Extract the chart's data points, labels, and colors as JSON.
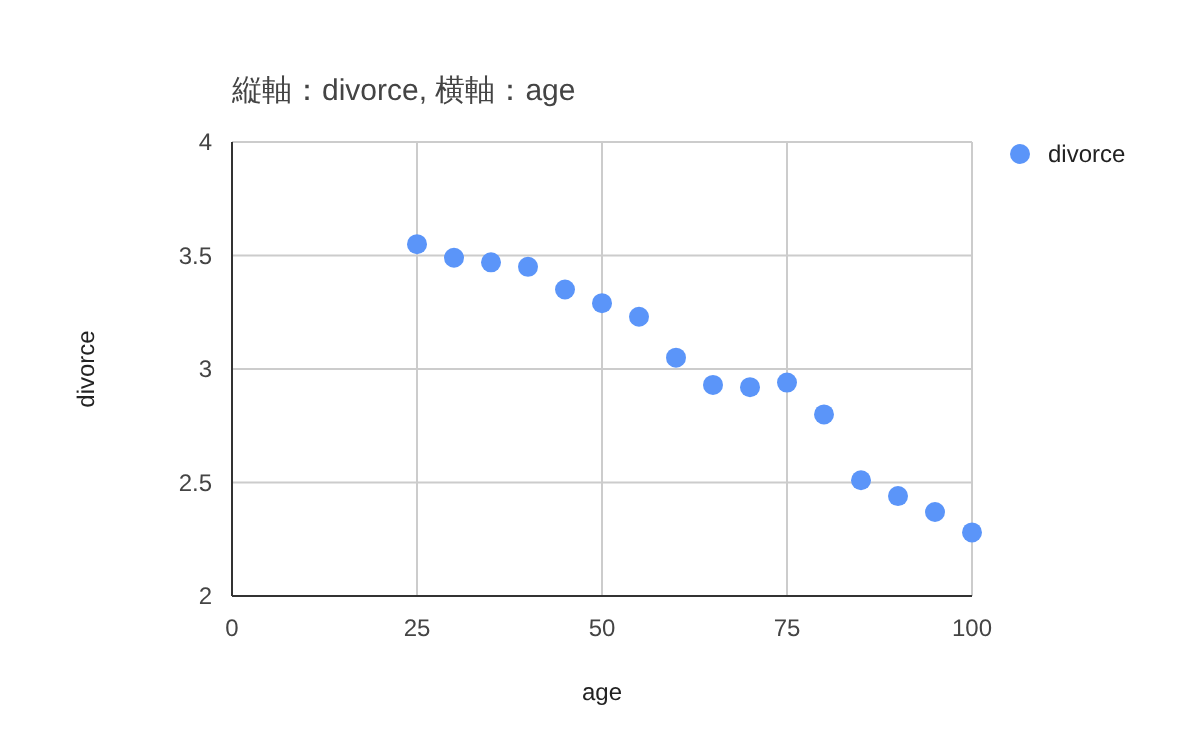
{
  "chart_data": {
    "type": "scatter",
    "title": "縦軸：divorce, 横軸：age",
    "xlabel": "age",
    "ylabel": "divorce",
    "x": [
      25,
      30,
      35,
      40,
      45,
      50,
      55,
      60,
      65,
      70,
      75,
      80,
      85,
      90,
      95,
      100
    ],
    "series": [
      {
        "name": "divorce",
        "color": "#5b95f9",
        "values": [
          3.55,
          3.49,
          3.47,
          3.45,
          3.35,
          3.29,
          3.23,
          3.05,
          2.93,
          2.92,
          2.94,
          2.8,
          2.51,
          2.44,
          2.37,
          2.28
        ]
      }
    ],
    "xlim": [
      0,
      100
    ],
    "ylim": [
      2,
      4
    ],
    "xticks": [
      0,
      25,
      50,
      75,
      100
    ],
    "yticks": [
      2,
      2.5,
      3,
      3.5,
      4
    ],
    "grid": true,
    "legend": "top right",
    "marker": "circle"
  }
}
